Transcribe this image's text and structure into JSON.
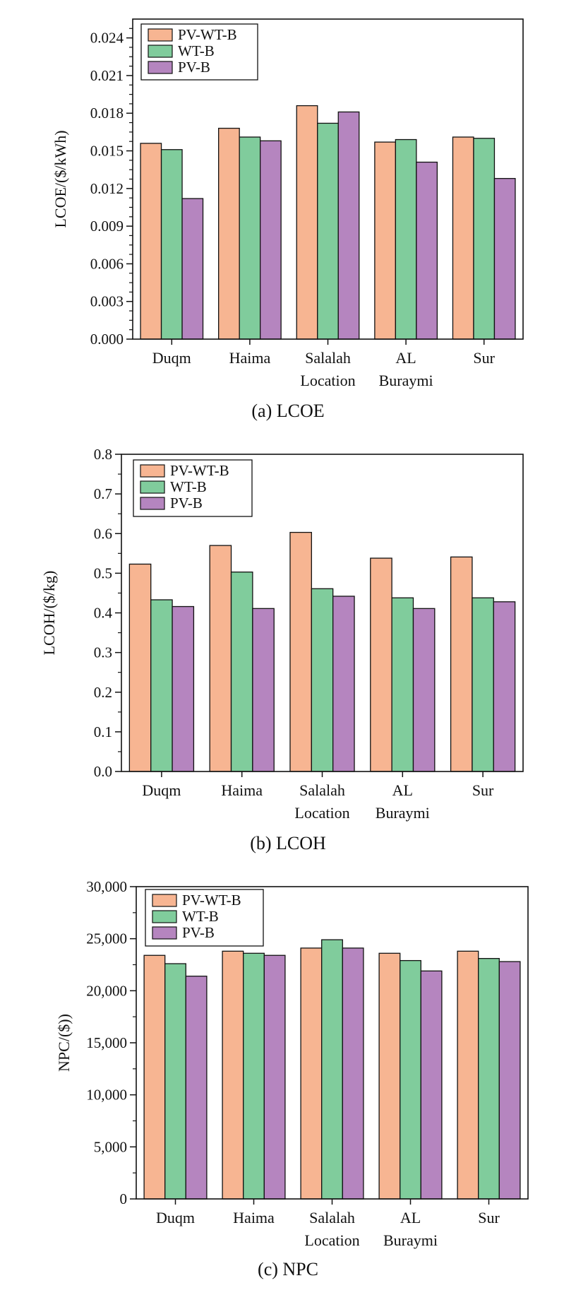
{
  "chart_data": [
    {
      "type": "bar",
      "caption": "(a) LCOE",
      "ylabel": "LCOE/($/kWh)",
      "categories": [
        [
          "Duqm"
        ],
        [
          "Haima"
        ],
        [
          "Salalah",
          "Location"
        ],
        [
          "AL",
          "Buraymi"
        ],
        [
          "Sur"
        ]
      ],
      "ylim": [
        0,
        0.0255
      ],
      "yticks": [
        "0.000",
        "0.003",
        "0.006",
        "0.009",
        "0.012",
        "0.015",
        "0.018",
        "0.021",
        "0.024"
      ],
      "series": [
        {
          "name": "PV-WT-B",
          "values": [
            0.0156,
            0.0168,
            0.0186,
            0.0157,
            0.0161
          ]
        },
        {
          "name": "WT-B",
          "values": [
            0.0151,
            0.0161,
            0.0172,
            0.0159,
            0.016
          ]
        },
        {
          "name": "PV-B",
          "values": [
            0.0112,
            0.0158,
            0.0181,
            0.0141,
            0.0128
          ]
        }
      ]
    },
    {
      "type": "bar",
      "caption": "(b) LCOH",
      "ylabel": "LCOH/($/kg)",
      "categories": [
        [
          "Duqm"
        ],
        [
          "Haima"
        ],
        [
          "Salalah",
          "Location"
        ],
        [
          "AL",
          "Buraymi"
        ],
        [
          "Sur"
        ]
      ],
      "ylim": [
        0,
        0.8
      ],
      "yticks": [
        "0.0",
        "0.1",
        "0.2",
        "0.3",
        "0.4",
        "0.5",
        "0.6",
        "0.7",
        "0.8"
      ],
      "series": [
        {
          "name": "PV-WT-B",
          "values": [
            0.523,
            0.57,
            0.603,
            0.538,
            0.541
          ]
        },
        {
          "name": "WT-B",
          "values": [
            0.433,
            0.503,
            0.461,
            0.438,
            0.438
          ]
        },
        {
          "name": "PV-B",
          "values": [
            0.416,
            0.411,
            0.442,
            0.411,
            0.428
          ]
        }
      ]
    },
    {
      "type": "bar",
      "caption": "(c) NPC",
      "ylabel": "NPC/($))",
      "categories": [
        [
          "Duqm"
        ],
        [
          "Haima"
        ],
        [
          "Salalah",
          "Location"
        ],
        [
          "AL",
          "Buraymi"
        ],
        [
          "Sur"
        ]
      ],
      "ylim": [
        0,
        30000
      ],
      "yticks": [
        "0",
        "5,000",
        "10,000",
        "15,000",
        "20,000",
        "25,000",
        "30,000"
      ],
      "series": [
        {
          "name": "PV-WT-B",
          "values": [
            23400,
            23800,
            24100,
            23600,
            23800
          ]
        },
        {
          "name": "WT-B",
          "values": [
            22600,
            23600,
            24900,
            22900,
            23100
          ]
        },
        {
          "name": "PV-B",
          "values": [
            21400,
            23400,
            24100,
            21900,
            22800
          ]
        }
      ]
    }
  ],
  "colors": {
    "series": [
      "#f7b592",
      "#80cc9c",
      "#b585bf"
    ],
    "axis": "#111111"
  }
}
